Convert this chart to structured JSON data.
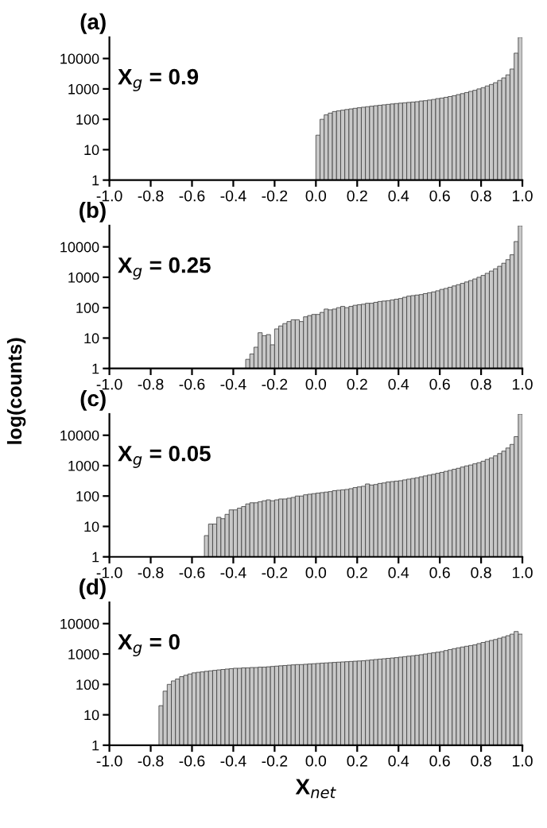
{
  "chart_data": [
    {
      "type": "histogram",
      "title": "(a)",
      "annotations": [
        "X$_{g}$ = 0.9"
      ],
      "color": "#c8c8c8",
      "log": "y",
      "grid": false,
      "legend": false,
      "tick_labels": "xy",
      "bins": [
        0.0,
        0.02,
        0.04,
        0.06,
        0.08,
        0.1,
        0.12,
        0.14,
        0.16,
        0.18,
        0.2,
        0.22,
        0.24,
        0.26,
        0.28,
        0.3,
        0.32,
        0.34,
        0.36,
        0.38,
        0.4,
        0.42,
        0.44,
        0.46,
        0.48,
        0.5,
        0.52,
        0.54,
        0.56,
        0.58,
        0.6,
        0.62,
        0.64,
        0.66,
        0.68,
        0.7,
        0.72,
        0.74,
        0.76,
        0.78,
        0.8,
        0.82,
        0.84,
        0.86,
        0.88,
        0.9,
        0.92,
        0.94,
        0.96,
        0.98,
        1.0
      ],
      "values": [
        30,
        100,
        140,
        160,
        180,
        190,
        200,
        210,
        220,
        230,
        240,
        250,
        260,
        270,
        280,
        290,
        300,
        310,
        320,
        330,
        340,
        350,
        360,
        370,
        380,
        400,
        410,
        430,
        450,
        480,
        500,
        530,
        560,
        600,
        650,
        700,
        760,
        830,
        900,
        1000,
        1100,
        1250,
        1400,
        1600,
        1900,
        2300,
        2900,
        4500,
        15000,
        50000
      ],
      "xlim": [
        -1.0,
        1.0
      ],
      "xticks": [
        {
          "value": -1.0,
          "label": "-1.0"
        },
        -0.8,
        -0.6,
        -0.4,
        -0.2,
        {
          "value": 0.0,
          "label": "0.0"
        },
        0.2,
        0.4,
        0.6,
        0.8,
        {
          "value": 1.0,
          "label": "1.0"
        }
      ],
      "ylim": [
        1,
        50000
      ],
      "yticks": [
        1,
        10,
        100,
        1000,
        10000
      ]
    },
    {
      "type": "histogram",
      "title": "(b)",
      "annotations": [
        "X$_{g}$ = 0.25"
      ],
      "ylabel": "log(counts)",
      "color": "#c8c8c8",
      "log": "y",
      "grid": false,
      "legend": false,
      "bins": [
        -0.34,
        -0.32,
        -0.3,
        -0.28,
        -0.26,
        -0.24,
        -0.22,
        -0.2,
        -0.18,
        -0.16,
        -0.14,
        -0.12,
        -0.1,
        -0.08,
        -0.06,
        -0.04,
        -0.02,
        0.0,
        0.02,
        0.04,
        0.06,
        0.08,
        0.1,
        0.12,
        0.14,
        0.16,
        0.18,
        0.2,
        0.22,
        0.24,
        0.26,
        0.28,
        0.3,
        0.32,
        0.34,
        0.36,
        0.38,
        0.4,
        0.42,
        0.44,
        0.46,
        0.48,
        0.5,
        0.52,
        0.54,
        0.56,
        0.58,
        0.6,
        0.62,
        0.64,
        0.66,
        0.68,
        0.7,
        0.72,
        0.74,
        0.76,
        0.78,
        0.8,
        0.82,
        0.84,
        0.86,
        0.88,
        0.9,
        0.92,
        0.94,
        0.96,
        0.98,
        1.0
      ],
      "values": [
        2,
        3,
        5,
        15,
        12,
        13,
        6,
        20,
        25,
        30,
        35,
        40,
        40,
        35,
        50,
        55,
        60,
        60,
        70,
        90,
        85,
        90,
        100,
        110,
        100,
        110,
        120,
        125,
        130,
        140,
        140,
        150,
        160,
        165,
        170,
        180,
        190,
        200,
        220,
        240,
        250,
        260,
        270,
        290,
        310,
        330,
        360,
        400,
        430,
        470,
        520,
        570,
        630,
        700,
        780,
        880,
        1000,
        1150,
        1350,
        1600,
        1900,
        2300,
        2900,
        3800,
        5500,
        15000,
        50000
      ],
      "xlim": [
        -1.0,
        1.0
      ],
      "xticks": [
        {
          "value": -1.0,
          "label": "-1.0"
        },
        -0.8,
        -0.6,
        -0.4,
        -0.2,
        {
          "value": 0.0,
          "label": "0.0"
        },
        0.2,
        0.4,
        0.6,
        0.8,
        {
          "value": 1.0,
          "label": "1.0"
        }
      ],
      "ylim": [
        1,
        50000
      ],
      "yticks": [
        1,
        10,
        100,
        1000,
        10000
      ]
    },
    {
      "type": "histogram",
      "title": "(c)",
      "annotations": [
        "X$_{g}$ = 0.05"
      ],
      "color": "#c8c8c8",
      "log": "y",
      "grid": false,
      "legend": false,
      "bins": [
        -0.54,
        -0.52,
        -0.5,
        -0.48,
        -0.46,
        -0.44,
        -0.42,
        -0.4,
        -0.38,
        -0.36,
        -0.34,
        -0.32,
        -0.3,
        -0.28,
        -0.26,
        -0.24,
        -0.22,
        -0.2,
        -0.18,
        -0.16,
        -0.14,
        -0.12,
        -0.1,
        -0.08,
        -0.06,
        -0.04,
        -0.02,
        0.0,
        0.02,
        0.04,
        0.06,
        0.08,
        0.1,
        0.12,
        0.14,
        0.16,
        0.18,
        0.2,
        0.22,
        0.24,
        0.26,
        0.28,
        0.3,
        0.32,
        0.34,
        0.36,
        0.38,
        0.4,
        0.42,
        0.44,
        0.46,
        0.48,
        0.5,
        0.52,
        0.54,
        0.56,
        0.58,
        0.6,
        0.62,
        0.64,
        0.66,
        0.68,
        0.7,
        0.72,
        0.74,
        0.76,
        0.78,
        0.8,
        0.82,
        0.84,
        0.86,
        0.88,
        0.9,
        0.92,
        0.94,
        0.96,
        0.98,
        1.0
      ],
      "values": [
        5,
        12,
        12,
        20,
        18,
        25,
        35,
        35,
        40,
        45,
        55,
        60,
        60,
        65,
        70,
        75,
        70,
        75,
        80,
        80,
        85,
        90,
        100,
        100,
        110,
        115,
        120,
        125,
        130,
        135,
        140,
        150,
        155,
        160,
        165,
        175,
        190,
        200,
        210,
        250,
        230,
        240,
        260,
        270,
        290,
        300,
        310,
        320,
        340,
        360,
        380,
        400,
        430,
        460,
        490,
        520,
        560,
        600,
        650,
        700,
        760,
        820,
        900,
        980,
        1050,
        1150,
        1250,
        1400,
        1600,
        1800,
        2100,
        2500,
        3000,
        3800,
        5000,
        9000,
        50000
      ],
      "xlim": [
        -1.0,
        1.0
      ],
      "xticks": [
        {
          "value": -1.0,
          "label": "-1.0"
        },
        -0.8,
        -0.6,
        -0.4,
        -0.2,
        {
          "value": 0.0,
          "label": "0.0"
        },
        0.2,
        0.4,
        0.6,
        0.8,
        {
          "value": 1.0,
          "label": "1.0"
        }
      ],
      "ylim": [
        1,
        50000
      ],
      "yticks": [
        1,
        10,
        100,
        1000,
        10000
      ]
    },
    {
      "type": "histogram",
      "title": "(d)",
      "annotations": [
        "X$_{g}$ = 0"
      ],
      "xlabel": "X$_{net}$",
      "color": "#c8c8c8",
      "log": "y",
      "grid": false,
      "legend": false,
      "bins": [
        -0.76,
        -0.74,
        -0.72,
        -0.7,
        -0.68,
        -0.66,
        -0.64,
        -0.62,
        -0.6,
        -0.58,
        -0.56,
        -0.54,
        -0.52,
        -0.5,
        -0.48,
        -0.46,
        -0.44,
        -0.42,
        -0.4,
        -0.38,
        -0.36,
        -0.34,
        -0.32,
        -0.3,
        -0.28,
        -0.26,
        -0.24,
        -0.22,
        -0.2,
        -0.18,
        -0.16,
        -0.14,
        -0.12,
        -0.1,
        -0.08,
        -0.06,
        -0.04,
        -0.02,
        0.0,
        0.02,
        0.04,
        0.06,
        0.08,
        0.1,
        0.12,
        0.14,
        0.16,
        0.18,
        0.2,
        0.22,
        0.24,
        0.26,
        0.28,
        0.3,
        0.32,
        0.34,
        0.36,
        0.38,
        0.4,
        0.42,
        0.44,
        0.46,
        0.48,
        0.5,
        0.52,
        0.54,
        0.56,
        0.58,
        0.6,
        0.62,
        0.64,
        0.66,
        0.68,
        0.7,
        0.72,
        0.74,
        0.76,
        0.78,
        0.8,
        0.82,
        0.84,
        0.86,
        0.88,
        0.9,
        0.92,
        0.94,
        0.96,
        0.98,
        1.0
      ],
      "values": [
        20,
        60,
        100,
        130,
        150,
        180,
        200,
        220,
        240,
        250,
        260,
        270,
        280,
        290,
        300,
        310,
        320,
        330,
        340,
        340,
        350,
        350,
        360,
        360,
        370,
        370,
        380,
        390,
        400,
        410,
        420,
        430,
        440,
        450,
        450,
        460,
        470,
        480,
        490,
        500,
        510,
        520,
        530,
        540,
        550,
        560,
        570,
        580,
        590,
        600,
        620,
        640,
        660,
        680,
        700,
        720,
        740,
        760,
        790,
        820,
        850,
        880,
        910,
        950,
        1000,
        1050,
        1100,
        1150,
        1200,
        1300,
        1400,
        1500,
        1600,
        1700,
        1800,
        1900,
        2000,
        2200,
        2400,
        2600,
        2800,
        3000,
        3300,
        3600,
        4000,
        4500,
        5500,
        4500
      ],
      "xlim": [
        -1.0,
        1.0
      ],
      "xticks": [
        {
          "value": -1.0,
          "label": "-1.0"
        },
        -0.8,
        -0.6,
        -0.4,
        -0.2,
        {
          "value": 0.0,
          "label": "0.0"
        },
        0.2,
        0.4,
        0.6,
        0.8,
        {
          "value": 1.0,
          "label": "1.0"
        }
      ],
      "ylim": [
        1,
        50000
      ],
      "yticks": [
        1,
        10,
        100,
        1000,
        10000
      ]
    }
  ]
}
